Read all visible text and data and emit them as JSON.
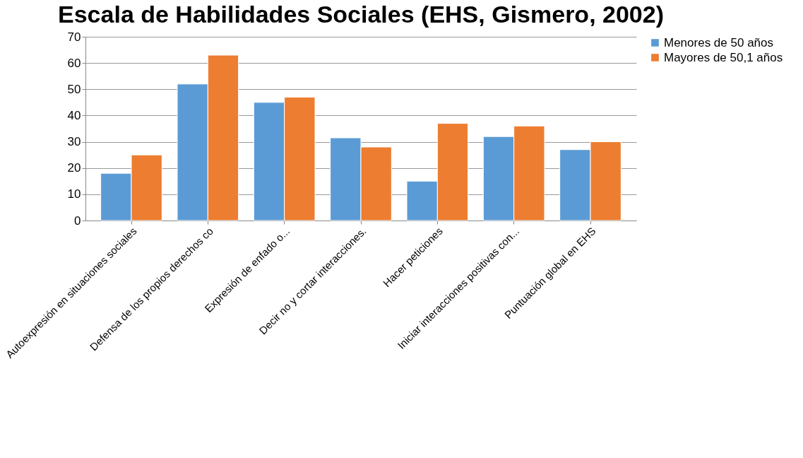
{
  "chart_data": {
    "type": "bar",
    "title": "Escala de Habilidades Sociales (EHS, Gismero, 2002)",
    "categories": [
      "Autoexpresión en situaciones sociales",
      "Defensa de los propios derechos co",
      "Expresión de enfado o...",
      "Decir no y cortar interacciones.",
      "Hacer peticiones",
      "Iniciar interacciones positivas con...",
      "Puntuación global en EHS"
    ],
    "series": [
      {
        "name": "Menores de 50 años",
        "color": "#5b9bd5",
        "values": [
          18,
          52,
          45,
          31.5,
          15,
          32,
          27
        ]
      },
      {
        "name": "Mayores de 50,1 años",
        "color": "#ed7d31",
        "values": [
          25,
          63,
          47,
          28,
          37,
          36,
          30
        ]
      }
    ],
    "ylim": [
      0,
      70
    ],
    "yticks": [
      0,
      10,
      20,
      30,
      40,
      50,
      60,
      70
    ],
    "grid": "y",
    "legend": "right"
  }
}
